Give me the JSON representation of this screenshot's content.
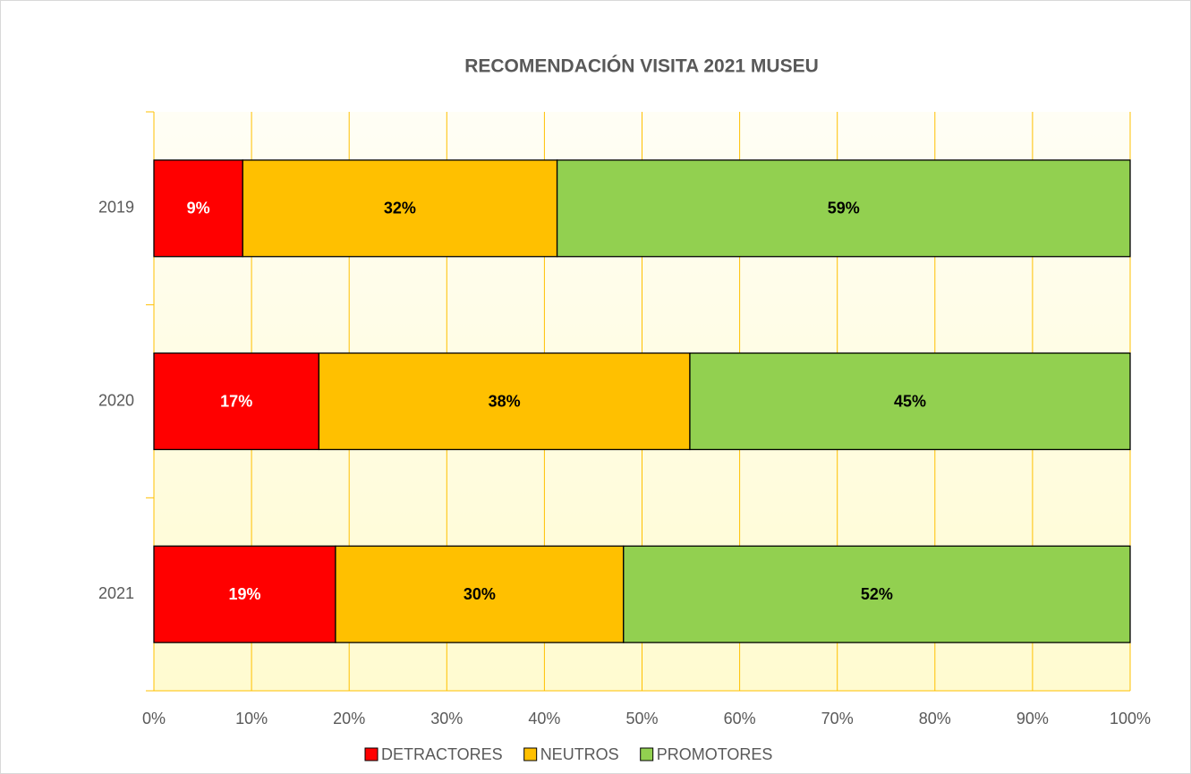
{
  "chart_data": {
    "type": "stacked_barh",
    "title": "RECOMENDACIÓN VISITA 2021 MUSEU",
    "categories": [
      "2019",
      "2020",
      "2021"
    ],
    "series": [
      {
        "name": "DETRACTORES",
        "color": "#ff0000",
        "values": [
          9.1,
          16.9,
          18.6
        ],
        "value_labels": [
          "9%",
          "17%",
          "19%"
        ]
      },
      {
        "name": "NEUTROS",
        "color": "#ffc000",
        "values": [
          32.2,
          38.0,
          29.5
        ],
        "value_labels": [
          "32%",
          "38%",
          "30%"
        ]
      },
      {
        "name": "PROMOTORES",
        "color": "#92d050",
        "values": [
          58.7,
          45.1,
          51.9
        ],
        "value_labels": [
          "59%",
          "45%",
          "52%"
        ]
      }
    ],
    "xlim": [
      0,
      100
    ],
    "xticks": [
      {
        "value": 0,
        "label": "0%"
      },
      {
        "value": 10,
        "label": "10%"
      },
      {
        "value": 20,
        "label": "20%"
      },
      {
        "value": 30,
        "label": "30%"
      },
      {
        "value": 40,
        "label": "40%"
      },
      {
        "value": 50,
        "label": "50%"
      },
      {
        "value": 60,
        "label": "60%"
      },
      {
        "value": 70,
        "label": "70%"
      },
      {
        "value": 80,
        "label": "80%"
      },
      {
        "value": 90,
        "label": "90%"
      },
      {
        "value": 100,
        "label": "100%"
      }
    ],
    "grid": true,
    "legend": "bottom"
  }
}
